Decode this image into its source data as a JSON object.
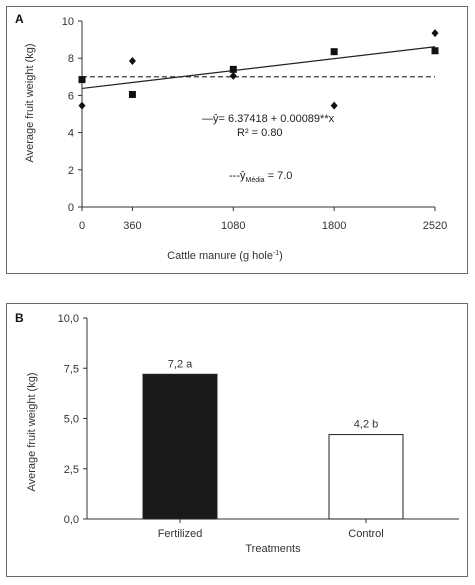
{
  "chart_data": [
    {
      "panel_label": "A",
      "type": "scatter",
      "xlabel": "Cattle manure (g hole⁻¹)",
      "ylabel": "Average fruit weight (kg)",
      "xticks": [
        0,
        360,
        1080,
        1800,
        2520
      ],
      "yticks": [
        0,
        2,
        4,
        6,
        8,
        10
      ],
      "xlim": [
        0,
        2520
      ],
      "ylim": [
        0,
        10
      ],
      "grid": false,
      "series": [
        {
          "marker": "square",
          "points": [
            [
              0,
              6.85
            ],
            [
              360,
              6.05
            ],
            [
              1080,
              7.4
            ],
            [
              1800,
              8.35
            ],
            [
              2520,
              8.4
            ]
          ]
        },
        {
          "marker": "diamond",
          "points": [
            [
              0,
              5.45
            ],
            [
              360,
              7.85
            ],
            [
              1080,
              7.05
            ],
            [
              1800,
              5.45
            ],
            [
              2520,
              9.35
            ]
          ]
        }
      ],
      "regression": {
        "intercept": 6.37418,
        "slope": 0.00089,
        "equation": "ŷ= 6.37418 + 0.00089**x",
        "r2": "R² = 0.80"
      },
      "mean_line": {
        "value": 7.0,
        "label_prefix": "ŷ",
        "label_sub": "Média",
        "label_suffix": " = 7.0"
      }
    },
    {
      "panel_label": "B",
      "type": "bar",
      "xlabel": "Treatments",
      "ylabel": "Average fruit weight (kg)",
      "categories": [
        "Fertilized",
        "Control"
      ],
      "values": [
        7.2,
        4.2
      ],
      "data_labels": [
        "7,2 a",
        "4,2 b"
      ],
      "bar_colors": [
        "#1a1a1a",
        "#ffffff"
      ],
      "yticks": [
        "0,0",
        "2,5",
        "5,0",
        "7,5",
        "10,0"
      ],
      "ylim": [
        0,
        10
      ],
      "grid": false
    }
  ]
}
